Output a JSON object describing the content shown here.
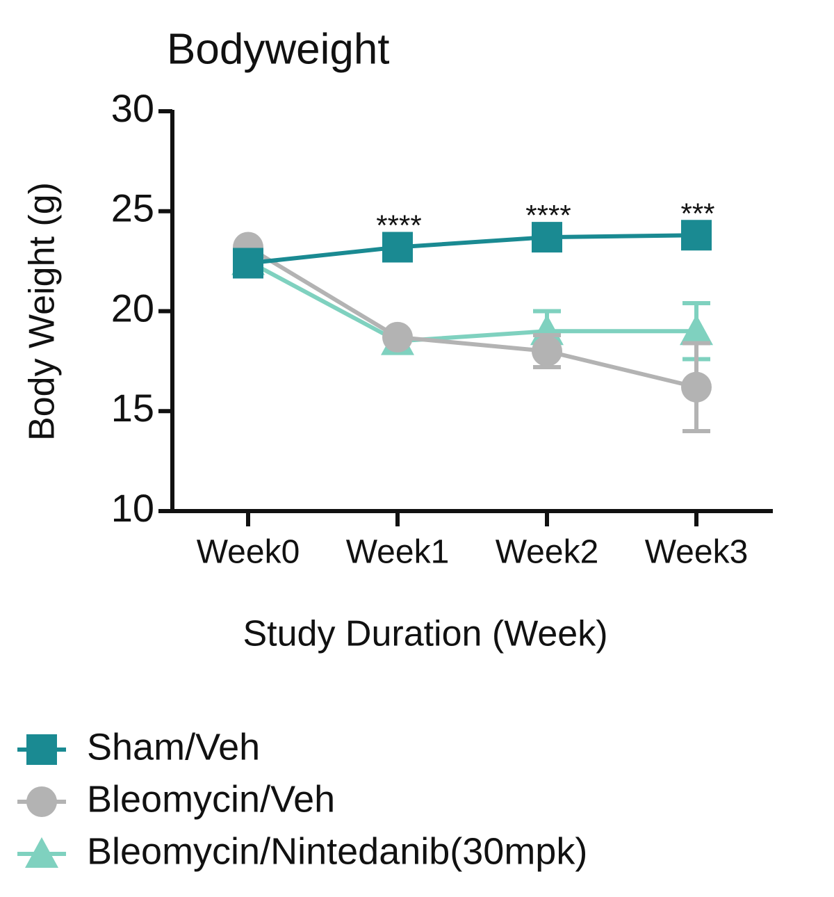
{
  "chart_data": {
    "type": "line",
    "title": "Bodyweight",
    "x_label": "Study Duration (Week)",
    "y_label": "Body Weight (g)",
    "categories": [
      "Week0",
      "Week1",
      "Week2",
      "Week3"
    ],
    "ylim": [
      10,
      30
    ],
    "yticks": [
      10,
      15,
      20,
      25,
      30
    ],
    "significance": [
      null,
      "****",
      "****",
      "***"
    ],
    "legend_position": "bottom-left",
    "series": [
      {
        "name": "Sham/Veh",
        "color": "#1a8a92",
        "marker": "square",
        "values": [
          22.4,
          23.2,
          23.7,
          23.8
        ],
        "errors": [
          null,
          null,
          null,
          null
        ]
      },
      {
        "name": "Bleomycin/Veh",
        "color": "#b3b3b3",
        "marker": "circle",
        "values": [
          23.2,
          18.7,
          18.0,
          16.2
        ],
        "errors": [
          null,
          null,
          0.8,
          2.2
        ]
      },
      {
        "name": "Bleomycin/Nintedanib(30mpk)",
        "color": "#7fd1bf",
        "marker": "triangle",
        "values": [
          22.5,
          18.5,
          19.0,
          19.0
        ],
        "errors": [
          null,
          null,
          1.0,
          1.4
        ]
      }
    ]
  }
}
